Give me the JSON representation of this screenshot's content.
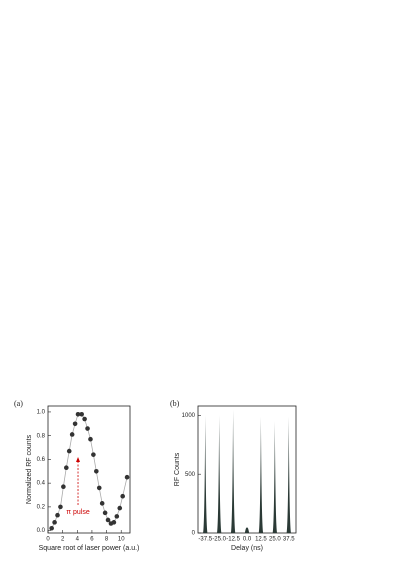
{
  "chart_data": [
    {
      "type": "scatter",
      "panel": "(a)",
      "xlabel": "Square root of laser power (a.u.)",
      "ylabel": "Normalized RF counts",
      "x": [
        0.5,
        0.9,
        1.3,
        1.7,
        2.1,
        2.5,
        2.9,
        3.3,
        3.7,
        4.1,
        4.6,
        5.0,
        5.4,
        5.8,
        6.2,
        6.6,
        7.0,
        7.4,
        7.8,
        8.2,
        8.6,
        9.0,
        9.4,
        9.8,
        10.2,
        10.8
      ],
      "values": [
        0.02,
        0.07,
        0.13,
        0.2,
        0.37,
        0.53,
        0.67,
        0.81,
        0.9,
        0.98,
        0.98,
        0.94,
        0.86,
        0.77,
        0.64,
        0.5,
        0.36,
        0.23,
        0.15,
        0.09,
        0.06,
        0.07,
        0.12,
        0.19,
        0.29,
        0.45
      ],
      "color": "#333333",
      "line_color": "#aaaaaa",
      "annotation": "π pulse",
      "annotation_color": "#cc0000",
      "xlim": [
        0,
        11.2
      ],
      "ylim": [
        -0.02,
        1.05
      ],
      "xticks": [
        0,
        2,
        4,
        6,
        8,
        10
      ],
      "yticks": [
        {
          "value": 0,
          "label": "0.0"
        },
        0.2,
        0.4,
        0.6,
        0.8,
        {
          "value": 1,
          "label": "1.0"
        }
      ]
    },
    {
      "type": "peaks",
      "panel": "(b)",
      "xlabel": "Delay (ns)",
      "ylabel": "RF Counts",
      "x": [
        -37.5,
        -25,
        -12.5,
        0,
        12.5,
        25,
        37.5
      ],
      "values": [
        1000,
        1000,
        1050,
        40,
        990,
        950,
        990
      ],
      "color": "#2b3a36",
      "xlim": [
        -44,
        44
      ],
      "ylim": [
        0,
        1080
      ],
      "xticks": [
        -37.5,
        {
          "value": -25,
          "label": "-25.0"
        },
        -12.5,
        {
          "value": 0,
          "label": "0.0"
        },
        12.5,
        {
          "value": 25,
          "label": "25.0"
        },
        37.5
      ],
      "yticks": [
        0,
        500,
        1000
      ]
    }
  ]
}
